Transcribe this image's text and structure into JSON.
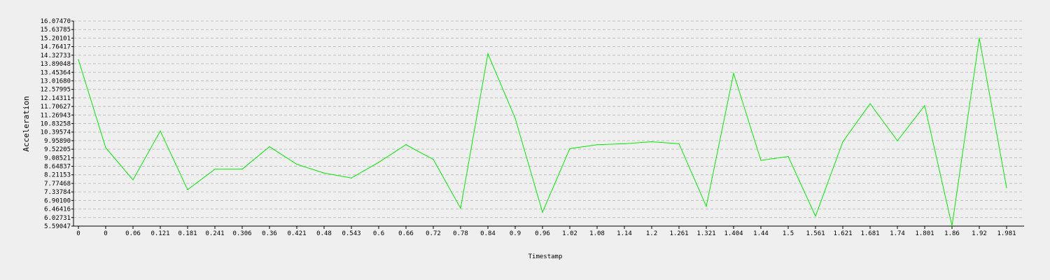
{
  "chart_data": {
    "type": "line",
    "title": "",
    "xlabel": "Timestamp",
    "ylabel": "Acceleration",
    "grid": true,
    "line_color": "#00ee00",
    "y_ticks": [
      "5.59047",
      "6.02731",
      "6.46416",
      "6.90100",
      "7.33784",
      "7.77468",
      "8.21153",
      "8.64837",
      "9.08521",
      "9.52205",
      "9.95890",
      "10.39574",
      "10.83258",
      "11.26943",
      "11.70627",
      "12.14311",
      "12.57995",
      "13.01680",
      "13.45364",
      "13.89048",
      "14.32733",
      "14.76417",
      "15.20101",
      "15.63785",
      "16.07470"
    ],
    "ylim": [
      5.59047,
      16.0747
    ],
    "categories": [
      "0",
      "0",
      "0.06",
      "0.121",
      "0.181",
      "0.241",
      "0.306",
      "0.36",
      "0.421",
      "0.48",
      "0.543",
      "0.6",
      "0.66",
      "0.72",
      "0.78",
      "0.84",
      "0.9",
      "0.96",
      "1.02",
      "1.08",
      "1.14",
      "1.2",
      "1.261",
      "1.321",
      "1.404",
      "1.44",
      "1.5",
      "1.561",
      "1.621",
      "1.681",
      "1.74",
      "1.801",
      "1.86",
      "1.92",
      "1.981"
    ],
    "series": [
      {
        "values": [
          14.1,
          9.6,
          7.95,
          10.45,
          7.45,
          8.5,
          8.5,
          9.65,
          8.75,
          8.3,
          8.05,
          8.85,
          9.75,
          9.0,
          6.5,
          14.4,
          11.1,
          6.3,
          9.55,
          9.75,
          9.8,
          9.9,
          9.8,
          6.6,
          13.4,
          8.95,
          9.15,
          6.1,
          9.9,
          11.85,
          9.95,
          11.75,
          5.6,
          15.2,
          7.55
        ]
      }
    ]
  }
}
